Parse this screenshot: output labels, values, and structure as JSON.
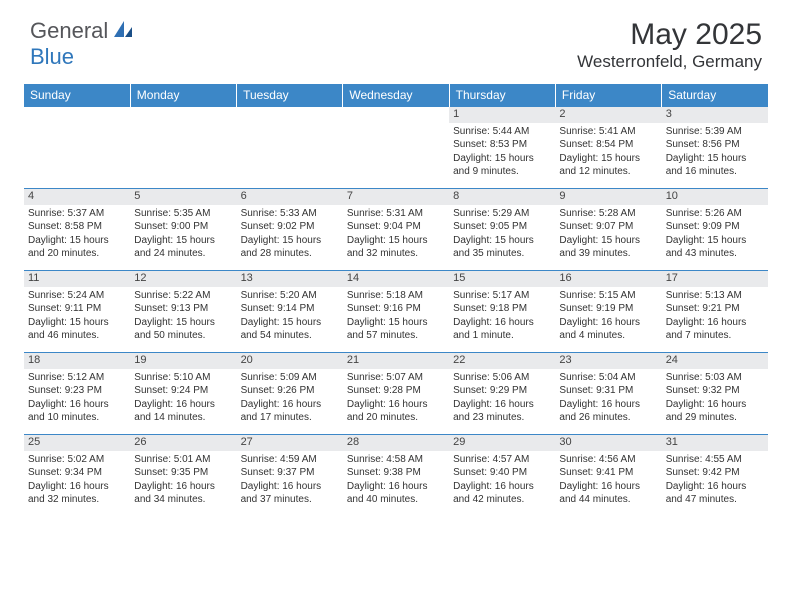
{
  "brand": {
    "text1": "General",
    "text2": "Blue"
  },
  "title": "May 2025",
  "location": "Westerronfeld, Germany",
  "colors": {
    "header_bg": "#3c87c7",
    "header_text": "#ffffff",
    "daynum_bg": "#e9eaec",
    "border": "#3c87c7",
    "text": "#333333",
    "brand_gray": "#55565a",
    "brand_blue": "#2f77bb"
  },
  "day_headers": [
    "Sunday",
    "Monday",
    "Tuesday",
    "Wednesday",
    "Thursday",
    "Friday",
    "Saturday"
  ],
  "weeks": [
    [
      null,
      null,
      null,
      null,
      {
        "n": "1",
        "sr": "5:44 AM",
        "ss": "8:53 PM",
        "dl": "15 hours and 9 minutes."
      },
      {
        "n": "2",
        "sr": "5:41 AM",
        "ss": "8:54 PM",
        "dl": "15 hours and 12 minutes."
      },
      {
        "n": "3",
        "sr": "5:39 AM",
        "ss": "8:56 PM",
        "dl": "15 hours and 16 minutes."
      }
    ],
    [
      {
        "n": "4",
        "sr": "5:37 AM",
        "ss": "8:58 PM",
        "dl": "15 hours and 20 minutes."
      },
      {
        "n": "5",
        "sr": "5:35 AM",
        "ss": "9:00 PM",
        "dl": "15 hours and 24 minutes."
      },
      {
        "n": "6",
        "sr": "5:33 AM",
        "ss": "9:02 PM",
        "dl": "15 hours and 28 minutes."
      },
      {
        "n": "7",
        "sr": "5:31 AM",
        "ss": "9:04 PM",
        "dl": "15 hours and 32 minutes."
      },
      {
        "n": "8",
        "sr": "5:29 AM",
        "ss": "9:05 PM",
        "dl": "15 hours and 35 minutes."
      },
      {
        "n": "9",
        "sr": "5:28 AM",
        "ss": "9:07 PM",
        "dl": "15 hours and 39 minutes."
      },
      {
        "n": "10",
        "sr": "5:26 AM",
        "ss": "9:09 PM",
        "dl": "15 hours and 43 minutes."
      }
    ],
    [
      {
        "n": "11",
        "sr": "5:24 AM",
        "ss": "9:11 PM",
        "dl": "15 hours and 46 minutes."
      },
      {
        "n": "12",
        "sr": "5:22 AM",
        "ss": "9:13 PM",
        "dl": "15 hours and 50 minutes."
      },
      {
        "n": "13",
        "sr": "5:20 AM",
        "ss": "9:14 PM",
        "dl": "15 hours and 54 minutes."
      },
      {
        "n": "14",
        "sr": "5:18 AM",
        "ss": "9:16 PM",
        "dl": "15 hours and 57 minutes."
      },
      {
        "n": "15",
        "sr": "5:17 AM",
        "ss": "9:18 PM",
        "dl": "16 hours and 1 minute."
      },
      {
        "n": "16",
        "sr": "5:15 AM",
        "ss": "9:19 PM",
        "dl": "16 hours and 4 minutes."
      },
      {
        "n": "17",
        "sr": "5:13 AM",
        "ss": "9:21 PM",
        "dl": "16 hours and 7 minutes."
      }
    ],
    [
      {
        "n": "18",
        "sr": "5:12 AM",
        "ss": "9:23 PM",
        "dl": "16 hours and 10 minutes."
      },
      {
        "n": "19",
        "sr": "5:10 AM",
        "ss": "9:24 PM",
        "dl": "16 hours and 14 minutes."
      },
      {
        "n": "20",
        "sr": "5:09 AM",
        "ss": "9:26 PM",
        "dl": "16 hours and 17 minutes."
      },
      {
        "n": "21",
        "sr": "5:07 AM",
        "ss": "9:28 PM",
        "dl": "16 hours and 20 minutes."
      },
      {
        "n": "22",
        "sr": "5:06 AM",
        "ss": "9:29 PM",
        "dl": "16 hours and 23 minutes."
      },
      {
        "n": "23",
        "sr": "5:04 AM",
        "ss": "9:31 PM",
        "dl": "16 hours and 26 minutes."
      },
      {
        "n": "24",
        "sr": "5:03 AM",
        "ss": "9:32 PM",
        "dl": "16 hours and 29 minutes."
      }
    ],
    [
      {
        "n": "25",
        "sr": "5:02 AM",
        "ss": "9:34 PM",
        "dl": "16 hours and 32 minutes."
      },
      {
        "n": "26",
        "sr": "5:01 AM",
        "ss": "9:35 PM",
        "dl": "16 hours and 34 minutes."
      },
      {
        "n": "27",
        "sr": "4:59 AM",
        "ss": "9:37 PM",
        "dl": "16 hours and 37 minutes."
      },
      {
        "n": "28",
        "sr": "4:58 AM",
        "ss": "9:38 PM",
        "dl": "16 hours and 40 minutes."
      },
      {
        "n": "29",
        "sr": "4:57 AM",
        "ss": "9:40 PM",
        "dl": "16 hours and 42 minutes."
      },
      {
        "n": "30",
        "sr": "4:56 AM",
        "ss": "9:41 PM",
        "dl": "16 hours and 44 minutes."
      },
      {
        "n": "31",
        "sr": "4:55 AM",
        "ss": "9:42 PM",
        "dl": "16 hours and 47 minutes."
      }
    ]
  ],
  "labels": {
    "sunrise": "Sunrise:",
    "sunset": "Sunset:",
    "daylight": "Daylight:"
  }
}
